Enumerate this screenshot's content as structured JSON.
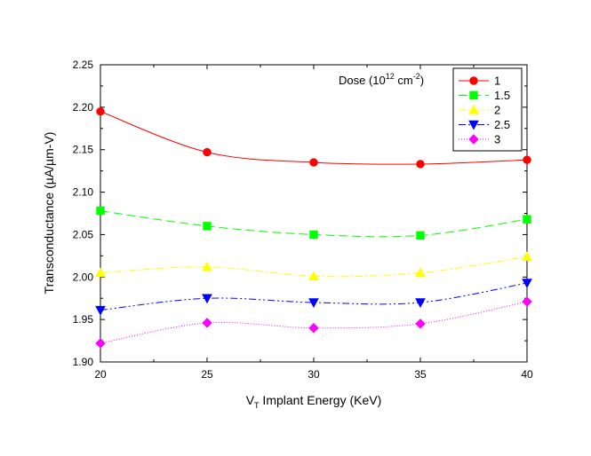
{
  "chart_data": {
    "type": "line",
    "xlabel": {
      "pre": "V",
      "sub": "T",
      "post": " Implant Energy (KeV)"
    },
    "ylabel": "Transconductance (µA/µm-V)",
    "legend_title": {
      "pre": "Dose (10",
      "sup1": "12",
      "mid": " cm",
      "sup2": "-2",
      "post": ")"
    },
    "legend_position": "top-right",
    "xlim": [
      20,
      40
    ],
    "ylim": [
      1.9,
      2.25
    ],
    "x_ticks": [
      "20",
      "25",
      "30",
      "35",
      "40"
    ],
    "y_ticks": [
      "1.90",
      "1.95",
      "2.00",
      "2.05",
      "2.10",
      "2.15",
      "2.20",
      "2.25"
    ],
    "x": [
      20,
      25,
      30,
      35,
      40
    ],
    "grid": false,
    "series": [
      {
        "name": "1",
        "values": [
          2.195,
          2.147,
          2.135,
          2.133,
          2.138
        ],
        "color": "#ff0000",
        "marker": "circle",
        "dash": ""
      },
      {
        "name": "1.5",
        "values": [
          2.078,
          2.06,
          2.05,
          2.049,
          2.068
        ],
        "color": "#00ff00",
        "marker": "square",
        "dash": "10,5"
      },
      {
        "name": "2",
        "values": [
          2.005,
          2.012,
          2.001,
          2.005,
          2.024
        ],
        "color": "#ffff00",
        "marker": "triangle-up",
        "dash": "8,3,2,3"
      },
      {
        "name": "2.5",
        "values": [
          1.961,
          1.975,
          1.97,
          1.97,
          1.993
        ],
        "color": "#0000ff",
        "marker": "triangle-down",
        "dash": "8,3,2,3,2,3"
      },
      {
        "name": "3",
        "values": [
          1.922,
          1.946,
          1.94,
          1.945,
          1.971
        ],
        "color": "#ff00ff",
        "marker": "diamond",
        "dash": "1,2"
      }
    ]
  }
}
